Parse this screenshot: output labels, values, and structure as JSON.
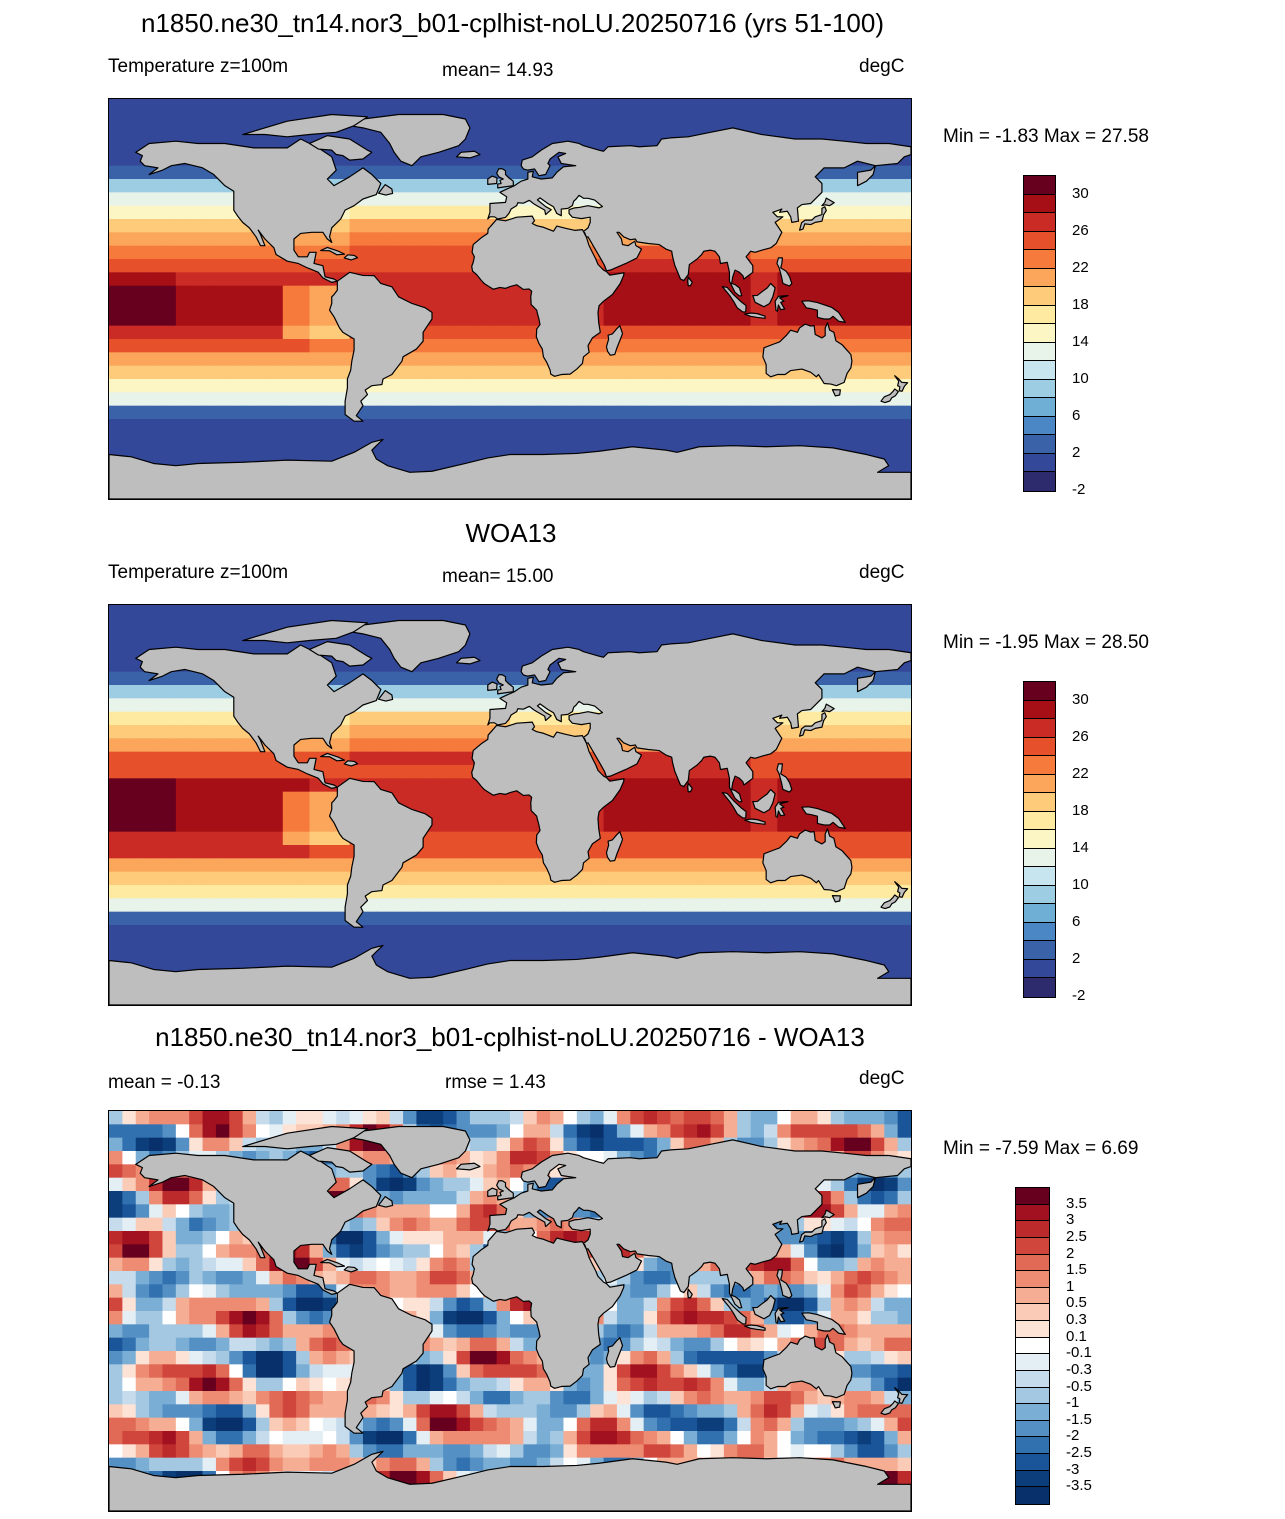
{
  "panels": [
    {
      "title": "n1850.ne30_tn14.nor3_b01-cplhist-noLU.20250716 (yrs 51-100)",
      "left_label": "Temperature z=100m",
      "center_label": "mean=  14.93",
      "units": "degC",
      "minmax": "Min =  -1.83 Max =  27.58",
      "mode": "abs",
      "intensity": 0.96
    },
    {
      "title": "WOA13",
      "left_label": "Temperature z=100m",
      "center_label": "mean=  15.00",
      "units": "degC",
      "minmax": "Min =  -1.95 Max =  28.50",
      "mode": "abs",
      "intensity": 1.0
    },
    {
      "title": "n1850.ne30_tn14.nor3_b01-cplhist-noLU.20250716 - WOA13",
      "left_label": "mean =  -0.13",
      "center_label": "rmse =   1.43",
      "units": "degC",
      "minmax": "Min =  -7.59 Max =   6.69",
      "mode": "diff",
      "intensity": 1.0
    }
  ],
  "colorbars": {
    "abs": {
      "labels": [
        "30",
        "26",
        "22",
        "18",
        "14",
        "10",
        "6",
        "2",
        "-2"
      ],
      "colors": [
        "#67001f",
        "#a50f15",
        "#cb2b25",
        "#e6502b",
        "#f57a3c",
        "#fca65c",
        "#fdcb7a",
        "#feeaa1",
        "#fbf6c3",
        "#e8f4ea",
        "#c7e5ef",
        "#9dcde3",
        "#6fafd6",
        "#4a87c4",
        "#3a62a8",
        "#34489a",
        "#2d2a6e"
      ]
    },
    "diff": {
      "labels": [
        "3.5",
        "3",
        "2.5",
        "2",
        "1.5",
        "1",
        "0.5",
        "0.3",
        "0.1",
        "-0.1",
        "-0.3",
        "-0.5",
        "-1",
        "-1.5",
        "-2",
        "-2.5",
        "-3",
        "-3.5"
      ],
      "colors": [
        "#67001f",
        "#a1111f",
        "#bd2a2b",
        "#d0463c",
        "#e06a55",
        "#ed8c73",
        "#f5ad93",
        "#facbb6",
        "#fde2d6",
        "#ffffff",
        "#e4eef5",
        "#c6dcec",
        "#a4c8e1",
        "#7aaed4",
        "#5490c4",
        "#3271b0",
        "#1a5599",
        "#0c3e7c",
        "#08306b"
      ]
    }
  }
}
